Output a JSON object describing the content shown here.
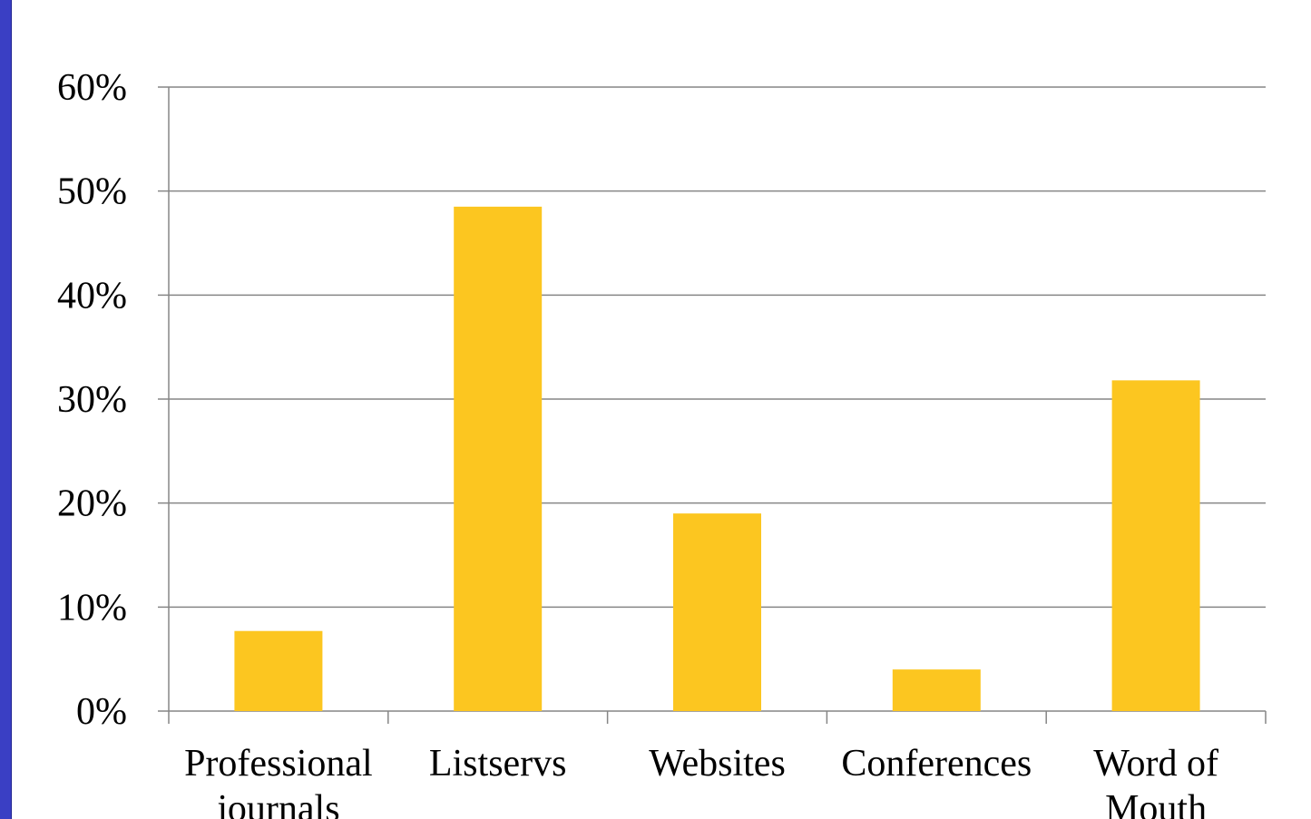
{
  "theme": {
    "accent_left_bar": "#3a3fc4",
    "bar_color": "#fcc620",
    "grid_color": "#868686"
  },
  "chart_data": {
    "type": "bar",
    "title": "",
    "xlabel": "",
    "ylabel": "",
    "categories": [
      [
        "Professional",
        "journals"
      ],
      [
        "Listservs"
      ],
      [
        "Websites"
      ],
      [
        "Conferences"
      ],
      [
        "Word of",
        "Mouth"
      ]
    ],
    "values": [
      7.7,
      48.5,
      19.0,
      4.0,
      31.8
    ],
    "ylim": [
      0,
      60
    ],
    "yticks": [
      0,
      10,
      20,
      30,
      40,
      50,
      60
    ],
    "ytick_labels": [
      "0%",
      "10%",
      "20%",
      "30%",
      "40%",
      "50%",
      "60%"
    ],
    "grid": true,
    "legend": "none"
  }
}
